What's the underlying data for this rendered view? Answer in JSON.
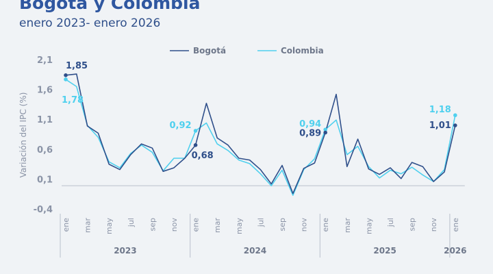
{
  "header": {
    "title": "Bogotá y Colombia",
    "subtitle": "enero 2023- enero 2026"
  },
  "colors": {
    "bogota": "#2f4f8a",
    "colombia": "#4fd0ee",
    "axis_text": "#8a93a6",
    "grid": "#b9c0cc"
  },
  "chart_data": {
    "type": "line",
    "title": "Bogotá y Colombia",
    "subtitle": "enero 2023- enero 2026",
    "xlabel": "",
    "ylabel": "Variación del IPC (%)",
    "ylim": [
      -0.4,
      2.1
    ],
    "yticks": [
      "2,1",
      "1,6",
      "1,1",
      "0,6",
      "0,1",
      "-0,4"
    ],
    "ytick_values": [
      2.1,
      1.6,
      1.1,
      0.6,
      0.1,
      -0.4
    ],
    "x_month_labels": [
      "ene",
      "mar",
      "may",
      "jul",
      "sep",
      "nov",
      "ene",
      "mar",
      "may",
      "jul",
      "sep",
      "nov",
      "ene",
      "mar",
      "may",
      "jul",
      "sep",
      "nov",
      "ene"
    ],
    "x_month_label_index": [
      0,
      2,
      4,
      6,
      8,
      10,
      12,
      14,
      16,
      18,
      20,
      22,
      24,
      26,
      28,
      30,
      32,
      34,
      36
    ],
    "years": [
      {
        "label": "2023",
        "start": 0,
        "end": 11
      },
      {
        "label": "2024",
        "start": 12,
        "end": 23
      },
      {
        "label": "2025",
        "start": 24,
        "end": 35
      },
      {
        "label": "2026",
        "start": 36,
        "end": 36
      }
    ],
    "legend": [
      "Bogotá",
      "Colombia"
    ],
    "legend_position": "top-center",
    "series": [
      {
        "name": "Bogotá",
        "values": [
          1.85,
          1.87,
          1.0,
          0.88,
          0.36,
          0.27,
          0.52,
          0.7,
          0.63,
          0.24,
          0.3,
          0.46,
          0.68,
          1.38,
          0.8,
          0.68,
          0.46,
          0.43,
          0.27,
          0.03,
          0.34,
          -0.13,
          0.29,
          0.38,
          0.89,
          1.53,
          0.32,
          0.78,
          0.28,
          0.19,
          0.3,
          0.12,
          0.39,
          0.32,
          0.07,
          0.23,
          1.01
        ]
      },
      {
        "name": "Colombia",
        "values": [
          1.78,
          1.66,
          1.01,
          0.81,
          0.4,
          0.3,
          0.54,
          0.68,
          0.56,
          0.25,
          0.46,
          0.46,
          0.92,
          1.05,
          0.7,
          0.59,
          0.43,
          0.37,
          0.2,
          0.0,
          0.26,
          -0.16,
          0.27,
          0.45,
          0.94,
          1.1,
          0.52,
          0.66,
          0.32,
          0.13,
          0.26,
          0.2,
          0.31,
          0.18,
          0.07,
          0.27,
          1.18
        ]
      }
    ],
    "annotations": [
      {
        "series": "Bogotá",
        "index": 0,
        "label": "1,85"
      },
      {
        "series": "Colombia",
        "index": 0,
        "label": "1,78"
      },
      {
        "series": "Colombia",
        "index": 12,
        "label": "0,92"
      },
      {
        "series": "Bogotá",
        "index": 12,
        "label": "0,68"
      },
      {
        "series": "Colombia",
        "index": 24,
        "label": "0,94"
      },
      {
        "series": "Bogotá",
        "index": 24,
        "label": "0,89"
      },
      {
        "series": "Colombia",
        "index": 36,
        "label": "1,18"
      },
      {
        "series": "Bogotá",
        "index": 36,
        "label": "1,01"
      }
    ]
  }
}
